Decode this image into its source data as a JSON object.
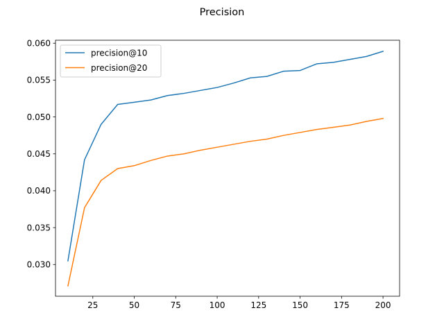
{
  "chart_data": {
    "type": "line",
    "title": "Precision",
    "xlabel": "",
    "ylabel": "",
    "x": [
      10,
      20,
      30,
      40,
      50,
      60,
      70,
      80,
      90,
      100,
      110,
      120,
      130,
      140,
      150,
      160,
      170,
      180,
      190,
      200
    ],
    "xlim": [
      2.5,
      210
    ],
    "ylim": [
      0.0257,
      0.0604
    ],
    "xticks": [
      25,
      50,
      75,
      100,
      125,
      150,
      175,
      200
    ],
    "yticks": [
      0.03,
      0.035,
      0.04,
      0.045,
      0.05,
      0.055,
      0.06
    ],
    "xtick_labels": [
      "25",
      "50",
      "75",
      "100",
      "125",
      "150",
      "175",
      "200"
    ],
    "ytick_labels": [
      "0.030",
      "0.035",
      "0.040",
      "0.045",
      "0.050",
      "0.055",
      "0.060"
    ],
    "grid": false,
    "legend_position": "upper-left",
    "series": [
      {
        "name": "precision@10",
        "color": "#1f77b4",
        "values": [
          0.0305,
          0.0442,
          0.049,
          0.0517,
          0.052,
          0.0523,
          0.0529,
          0.0532,
          0.0536,
          0.054,
          0.0546,
          0.0553,
          0.0555,
          0.0562,
          0.0563,
          0.0572,
          0.0574,
          0.0578,
          0.0582,
          0.0589
        ]
      },
      {
        "name": "precision@20",
        "color": "#ff7f0e",
        "values": [
          0.0271,
          0.0377,
          0.0414,
          0.043,
          0.0434,
          0.0441,
          0.0447,
          0.045,
          0.0455,
          0.0459,
          0.0463,
          0.0467,
          0.047,
          0.0475,
          0.0479,
          0.0483,
          0.0486,
          0.0489,
          0.0494,
          0.0498
        ]
      }
    ]
  }
}
